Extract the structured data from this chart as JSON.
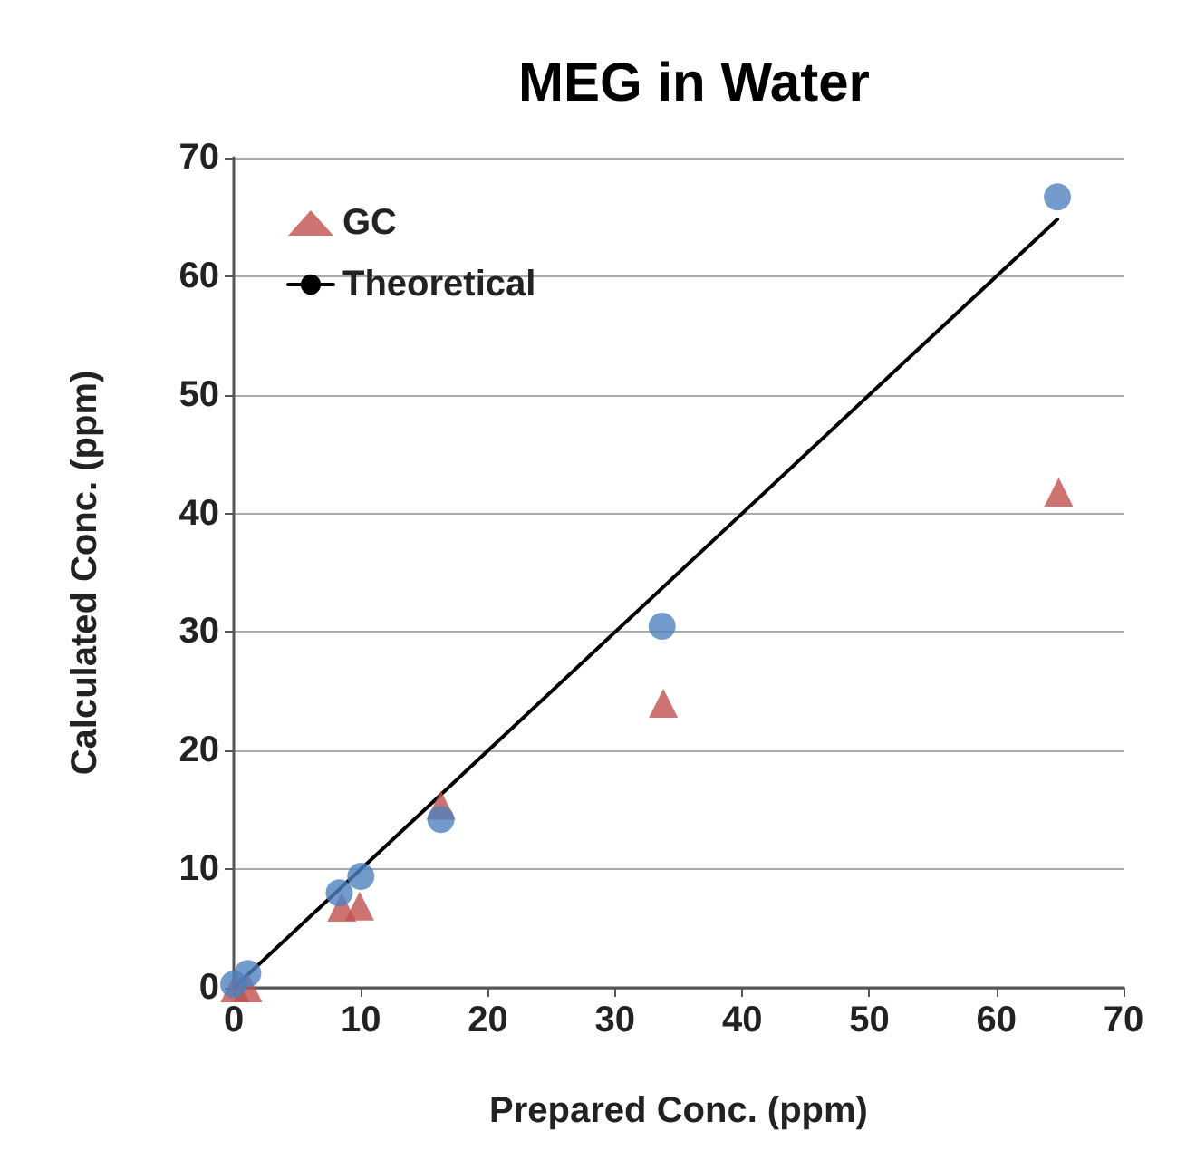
{
  "chart_data": {
    "type": "scatter",
    "title": "MEG in Water",
    "xlabel": "Prepared Conc. (ppm)",
    "ylabel": "Calculated Conc. (ppm)",
    "xlim": [
      0,
      70
    ],
    "xticks": [
      0,
      10,
      20,
      30,
      40,
      50,
      60,
      70
    ],
    "ylim": [
      0,
      70
    ],
    "yticks": [
      0,
      10,
      20,
      30,
      40,
      50,
      60,
      70
    ],
    "grid": "y",
    "legend": "top left",
    "series": [
      {
        "color": "#4f81bd",
        "marker": "circle",
        "x": [
          0,
          1.1,
          8.3,
          10.0,
          16.3,
          33.7,
          64.8
        ],
        "values": [
          0.3,
          1.2,
          8.0,
          9.4,
          14.2,
          30.5,
          66.7
        ]
      },
      {
        "name": "GC",
        "color": "#c0504d",
        "marker": "triangle",
        "x": [
          0.1,
          1.1,
          8.5,
          9.9,
          16.3,
          33.8,
          64.9
        ],
        "values": [
          0,
          0,
          6.8,
          6.9,
          15.4,
          24.0,
          41.8
        ]
      },
      {
        "name": "Theoretical",
        "type": "line",
        "color": "#000000",
        "marker": "none",
        "line_style": "solid",
        "x": [
          0,
          64.8
        ],
        "values": [
          0,
          64.8
        ]
      }
    ]
  }
}
